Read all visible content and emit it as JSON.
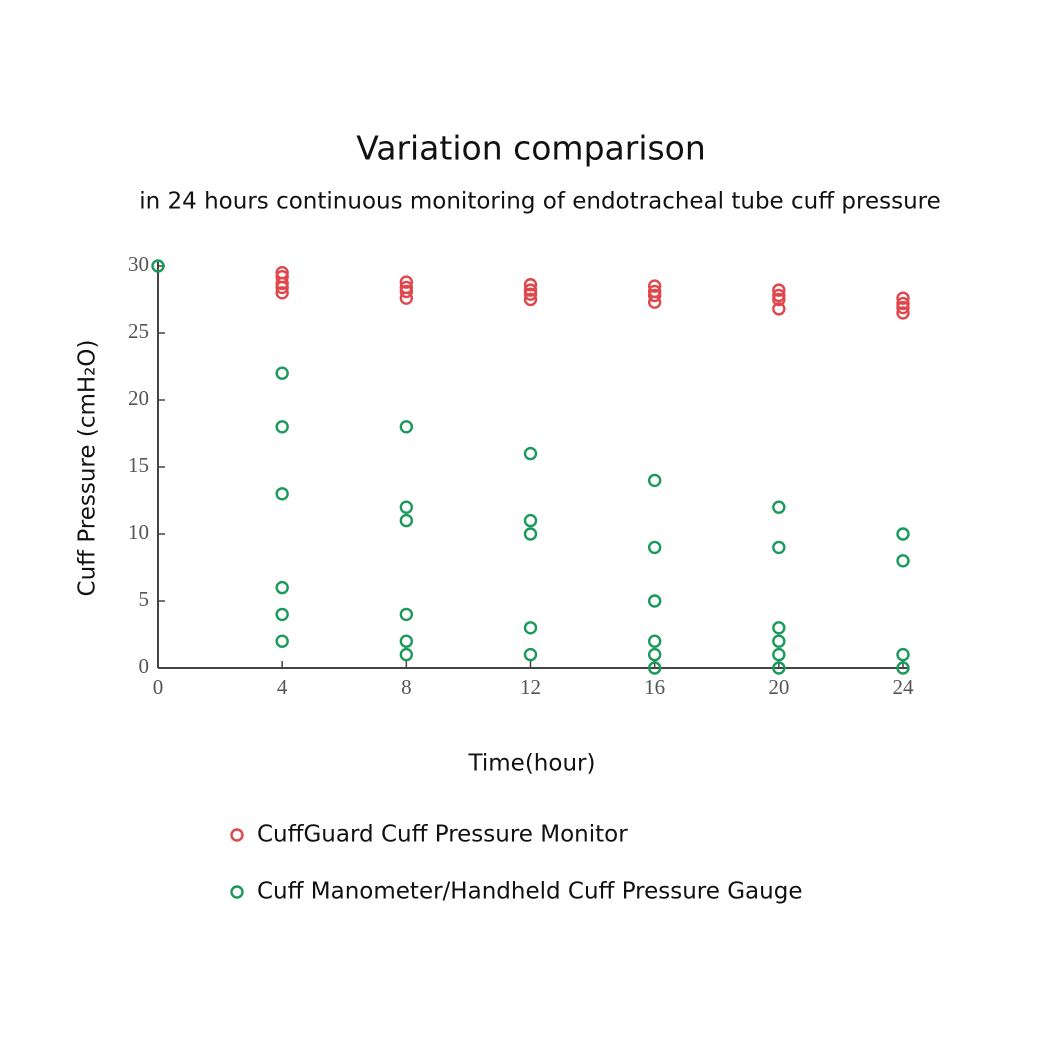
{
  "chart_data": {
    "type": "scatter",
    "title": "Variation comparison",
    "subtitle": "in 24 hours continuous monitoring of endotracheal tube cuff pressure",
    "x_label": "Time(hour)",
    "y_label": "Cuff Pressure (cmH₂O)",
    "xlim": [
      0,
      24
    ],
    "ylim": [
      0,
      30
    ],
    "xticks": [
      0,
      4,
      8,
      12,
      16,
      20,
      24
    ],
    "yticks": [
      0,
      5,
      10,
      15,
      20,
      25,
      30
    ],
    "series": [
      {
        "name": "CuffGuard Cuff Pressure Monitor",
        "color": "#e0474c",
        "x": [
          4,
          4,
          4,
          4,
          4,
          8,
          8,
          8,
          8,
          12,
          12,
          12,
          12,
          16,
          16,
          16,
          16,
          20,
          20,
          20,
          20,
          24,
          24,
          24,
          24
        ],
        "y": [
          29.5,
          29.2,
          28.7,
          28.4,
          28.0,
          28.8,
          28.4,
          28.1,
          27.6,
          28.6,
          28.2,
          27.9,
          27.5,
          28.5,
          28.1,
          27.8,
          27.3,
          28.2,
          27.8,
          27.5,
          26.8,
          27.6,
          27.2,
          26.9,
          26.5
        ]
      },
      {
        "name": "Cuff Manometer/Handheld Cuff Pressure Gauge",
        "color": "#1a9a5a",
        "x": [
          0,
          4,
          4,
          4,
          4,
          4,
          4,
          8,
          8,
          8,
          8,
          8,
          8,
          12,
          12,
          12,
          12,
          12,
          16,
          16,
          16,
          16,
          16,
          16,
          20,
          20,
          20,
          20,
          20,
          20,
          24,
          24,
          24,
          24
        ],
        "y": [
          30,
          22,
          18,
          13,
          6,
          4,
          2,
          18,
          12,
          11,
          4,
          2,
          1,
          16,
          11,
          10,
          3,
          1,
          14,
          9,
          5,
          2,
          1,
          0,
          12,
          9,
          3,
          2,
          1,
          0,
          10,
          8,
          1,
          0
        ]
      }
    ]
  }
}
